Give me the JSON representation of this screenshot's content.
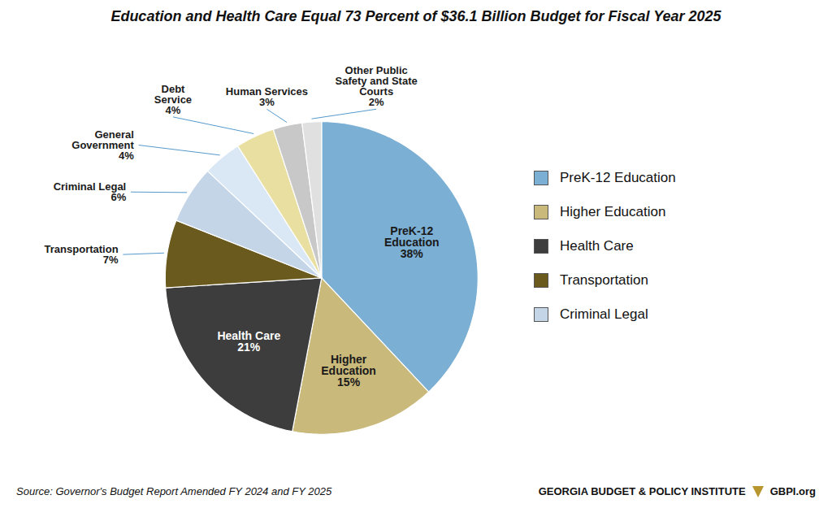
{
  "chart_data": {
    "type": "pie",
    "title": "Education and Health Care Equal 73 Percent of $36.1 Billion Budget for Fiscal Year 2025",
    "categories": [
      "PreK-12\nEducation",
      "Higher\nEducation",
      "Health Care",
      "Transportation",
      "Criminal Legal",
      "General\nGovernment",
      "Debt\nService",
      "Human Services",
      "Other Public\nSafety and State\nCourts"
    ],
    "values": [
      38,
      15,
      21,
      7,
      6,
      4,
      4,
      3,
      2
    ],
    "value_labels": [
      "38%",
      "15%",
      "21%",
      "7%",
      "6%",
      "4%",
      "4%",
      "3%",
      "2%"
    ],
    "colors": [
      "#7BAFD4",
      "#C9B97A",
      "#3D3D3D",
      "#6B5A1E",
      "#C5D5E8",
      "#DAE8F5",
      "#E8DFA0",
      "#C8C8C8",
      "#E0E0E0"
    ],
    "data_labels": true,
    "legend": "right",
    "legend_labels": [
      "PreK-12 Education",
      "Higher Education",
      "Health Care",
      "Transportation",
      "Criminal Legal"
    ],
    "source": "Source: Governor's Budget Report Amended FY 2024 and FY 2025",
    "footer": [
      "GEORGIA BUDGET & POLICY INSTITUTE",
      "GBPI.org"
    ]
  }
}
